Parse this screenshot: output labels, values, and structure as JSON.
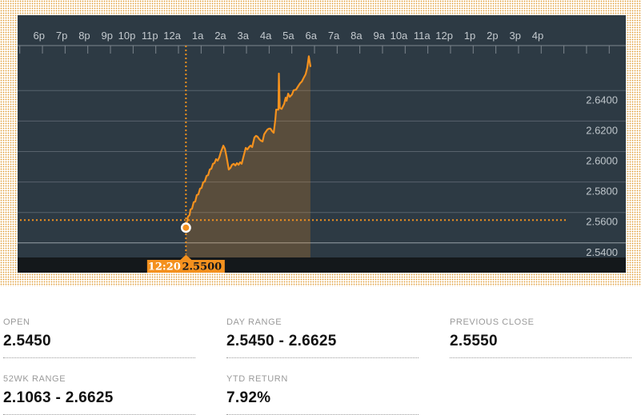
{
  "colors": {
    "accent_orange": "#f4911e",
    "chart_background": "#2d3a44",
    "chart_footer_bar": "#14181b",
    "dotted_band_orange": "#e09a30",
    "gridline_gray": "#57626c",
    "stat_label_gray": "#9a9a9a"
  },
  "chart_data": {
    "type": "area",
    "title": "Intraday price chart with crosshair at 12:20",
    "x_unit": "hours_after_midnight",
    "x_tick_labels": [
      "6p",
      "7p",
      "8p",
      "9p",
      "10p",
      "11p",
      "12a",
      "1a",
      "2a",
      "3a",
      "4a",
      "5a",
      "6a",
      "7a",
      "8a",
      "9a",
      "10a",
      "11a",
      "12p",
      "1p",
      "2p",
      "3p",
      "4p"
    ],
    "y_ticks": [
      2.64,
      2.62,
      2.6,
      2.58,
      2.56,
      2.54
    ],
    "ylim": [
      2.53,
      2.67
    ],
    "grid": "horizontal",
    "legend": "none",
    "previous_close": 2.555,
    "cursor": {
      "t": 0.33,
      "price": 2.55
    },
    "tooltip": {
      "time": "12:20",
      "price": "2.5500"
    },
    "series": [
      {
        "name": "price",
        "points": [
          [
            0.33,
            2.5504
          ],
          [
            0.42,
            2.5572
          ],
          [
            0.49,
            2.5583
          ],
          [
            0.53,
            2.5619
          ],
          [
            0.6,
            2.5625
          ],
          [
            0.67,
            2.5667
          ],
          [
            0.74,
            2.5672
          ],
          [
            0.81,
            2.5714
          ],
          [
            0.88,
            2.5719
          ],
          [
            0.95,
            2.5756
          ],
          [
            1.02,
            2.5761
          ],
          [
            1.09,
            2.5798
          ],
          [
            1.16,
            2.5803
          ],
          [
            1.24,
            2.584
          ],
          [
            1.31,
            2.5845
          ],
          [
            1.38,
            2.5882
          ],
          [
            1.45,
            2.5887
          ],
          [
            1.52,
            2.5919
          ],
          [
            1.59,
            2.5924
          ],
          [
            1.66,
            2.595
          ],
          [
            1.73,
            2.594
          ],
          [
            1.8,
            2.5961
          ],
          [
            1.87,
            2.5997
          ],
          [
            1.98,
            2.6039
          ],
          [
            2.05,
            2.6018
          ],
          [
            2.12,
            2.5966
          ],
          [
            2.22,
            2.5882
          ],
          [
            2.29,
            2.5892
          ],
          [
            2.36,
            2.5913
          ],
          [
            2.44,
            2.5919
          ],
          [
            2.51,
            2.5908
          ],
          [
            2.58,
            2.5924
          ],
          [
            2.65,
            2.5913
          ],
          [
            2.72,
            2.5929
          ],
          [
            2.79,
            2.5919
          ],
          [
            2.86,
            2.5961
          ],
          [
            2.97,
            2.6024
          ],
          [
            3.04,
            2.6013
          ],
          [
            3.11,
            2.6029
          ],
          [
            3.18,
            2.6039
          ],
          [
            3.25,
            2.6029
          ],
          [
            3.35,
            2.6092
          ],
          [
            3.42,
            2.6103
          ],
          [
            3.49,
            2.6097
          ],
          [
            3.57,
            2.6081
          ],
          [
            3.64,
            2.6071
          ],
          [
            3.71,
            2.6066
          ],
          [
            3.78,
            2.6113
          ],
          [
            3.85,
            2.6129
          ],
          [
            3.92,
            2.6144
          ],
          [
            3.99,
            2.615
          ],
          [
            4.06,
            2.615
          ],
          [
            4.13,
            2.6134
          ],
          [
            4.2,
            2.6123
          ],
          [
            4.27,
            2.6207
          ],
          [
            4.31,
            2.6275
          ],
          [
            4.41,
            2.6275
          ],
          [
            4.43,
            2.6512
          ],
          [
            4.47,
            2.6286
          ],
          [
            4.55,
            2.628
          ],
          [
            4.66,
            2.6312
          ],
          [
            4.73,
            2.6354
          ],
          [
            4.77,
            2.6333
          ],
          [
            4.84,
            2.638
          ],
          [
            4.91,
            2.6359
          ],
          [
            5.01,
            2.6375
          ],
          [
            5.08,
            2.6402
          ],
          [
            5.19,
            2.6407
          ],
          [
            5.3,
            2.6433
          ],
          [
            5.37,
            2.6449
          ],
          [
            5.44,
            2.6459
          ],
          [
            5.51,
            2.648
          ],
          [
            5.61,
            2.6507
          ],
          [
            5.68,
            2.6549
          ],
          [
            5.75,
            2.6625
          ],
          [
            5.82,
            2.656
          ]
        ]
      }
    ]
  },
  "stats": {
    "items": [
      {
        "label": "OPEN",
        "value": "2.5450"
      },
      {
        "label": "DAY RANGE",
        "value": "2.5450 - 2.6625"
      },
      {
        "label": "PREVIOUS CLOSE",
        "value": "2.5550"
      },
      {
        "label": "52WK RANGE",
        "value": "2.1063 - 2.6625"
      },
      {
        "label": "YTD RETURN",
        "value": "7.92%"
      }
    ]
  }
}
